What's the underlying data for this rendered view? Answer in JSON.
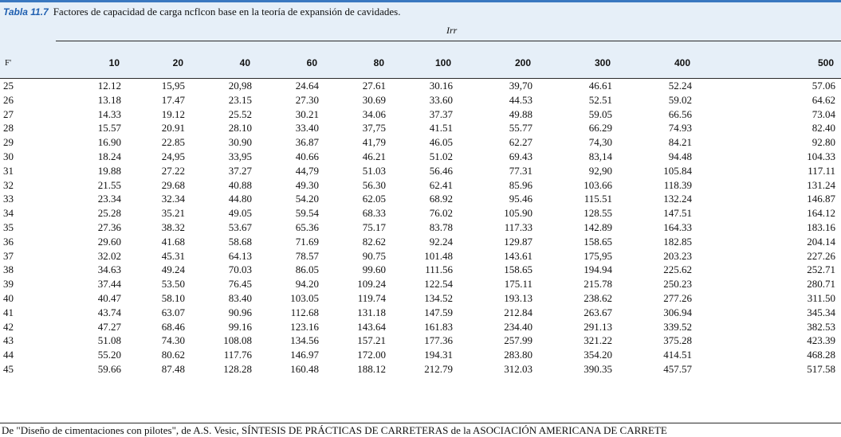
{
  "caption": {
    "label": "Tabla 11.7",
    "text": "Factores de capacidad de carga ncflcon base en la teoría de expansión de cavidades."
  },
  "table": {
    "group_header": "Irr",
    "row_header": "F'",
    "columns": [
      "10",
      "20",
      "40",
      "60",
      "80",
      "100",
      "200",
      "300",
      "400",
      "500"
    ],
    "rows": [
      {
        "phi": "25",
        "values": [
          "12.12",
          "15,95",
          "20,98",
          "24.64",
          "27.61",
          "30.16",
          "39,70",
          "46.61",
          "52.24",
          "57.06"
        ]
      },
      {
        "phi": "26",
        "values": [
          "13.18",
          "17.47",
          "23.15",
          "27.30",
          "30.69",
          "33.60",
          "44.53",
          "52.51",
          "59.02",
          "64.62"
        ]
      },
      {
        "phi": "27",
        "values": [
          "14.33",
          "19.12",
          "25.52",
          "30.21",
          "34.06",
          "37.37",
          "49.88",
          "59.05",
          "66.56",
          "73.04"
        ]
      },
      {
        "phi": "28",
        "values": [
          "15.57",
          "20.91",
          "28.10",
          "33.40",
          "37,75",
          "41.51",
          "55.77",
          "66.29",
          "74.93",
          "82.40"
        ]
      },
      {
        "phi": "29",
        "values": [
          "16.90",
          "22.85",
          "30.90",
          "36.87",
          "41,79",
          "46.05",
          "62.27",
          "74,30",
          "84.21",
          "92.80"
        ]
      },
      {
        "phi": "30",
        "values": [
          "18.24",
          "24,95",
          "33,95",
          "40.66",
          "46.21",
          "51.02",
          "69.43",
          "83,14",
          "94.48",
          "104.33"
        ]
      },
      {
        "phi": "31",
        "values": [
          "19.88",
          "27.22",
          "37.27",
          "44,79",
          "51.03",
          "56.46",
          "77.31",
          "92,90",
          "105.84",
          "117.11"
        ]
      },
      {
        "phi": "32",
        "values": [
          "21.55",
          "29.68",
          "40.88",
          "49.30",
          "56.30",
          "62.41",
          "85.96",
          "103.66",
          "118.39",
          "131.24"
        ]
      },
      {
        "phi": "33",
        "values": [
          "23.34",
          "32.34",
          "44.80",
          "54.20",
          "62.05",
          "68.92",
          "95.46",
          "115.51",
          "132.24",
          "146.87"
        ]
      },
      {
        "phi": "34",
        "values": [
          "25.28",
          "35.21",
          "49.05",
          "59.54",
          "68.33",
          "76.02",
          "105.90",
          "128.55",
          "147.51",
          "164.12"
        ]
      },
      {
        "phi": "35",
        "values": [
          "27.36",
          "38.32",
          "53.67",
          "65.36",
          "75.17",
          "83.78",
          "117.33",
          "142.89",
          "164.33",
          "183.16"
        ]
      },
      {
        "phi": "36",
        "values": [
          "29.60",
          "41.68",
          "58.68",
          "71.69",
          "82.62",
          "92.24",
          "129.87",
          "158.65",
          "182.85",
          "204.14"
        ]
      },
      {
        "phi": "37",
        "values": [
          "32.02",
          "45.31",
          "64.13",
          "78.57",
          "90.75",
          "101.48",
          "143.61",
          "175,95",
          "203.23",
          "227.26"
        ]
      },
      {
        "phi": "38",
        "values": [
          "34.63",
          "49.24",
          "70.03",
          "86.05",
          "99.60",
          "111.56",
          "158.65",
          "194.94",
          "225.62",
          "252.71"
        ]
      },
      {
        "phi": "39",
        "values": [
          "37.44",
          "53.50",
          "76.45",
          "94.20",
          "109.24",
          "122.54",
          "175.11",
          "215.78",
          "250.23",
          "280.71"
        ]
      },
      {
        "phi": "40",
        "values": [
          "40.47",
          "58.10",
          "83.40",
          "103.05",
          "119.74",
          "134.52",
          "193.13",
          "238.62",
          "277.26",
          "311.50"
        ]
      },
      {
        "phi": "41",
        "values": [
          "43.74",
          "63.07",
          "90.96",
          "112.68",
          "131.18",
          "147.59",
          "212.84",
          "263.67",
          "306.94",
          "345.34"
        ]
      },
      {
        "phi": "42",
        "values": [
          "47.27",
          "68.46",
          "99.16",
          "123.16",
          "143.64",
          "161.83",
          "234.40",
          "291.13",
          "339.52",
          "382.53"
        ]
      },
      {
        "phi": "43",
        "values": [
          "51.08",
          "74.30",
          "108.08",
          "134.56",
          "157.21",
          "177.36",
          "257.99",
          "321.22",
          "375.28",
          "423.39"
        ]
      },
      {
        "phi": "44",
        "values": [
          "55.20",
          "80.62",
          "117.76",
          "146.97",
          "172.00",
          "194.31",
          "283.80",
          "354.20",
          "414.51",
          "468.28"
        ]
      },
      {
        "phi": "45",
        "values": [
          "59.66",
          "87.48",
          "128.28",
          "160.48",
          "188.12",
          "212.79",
          "312.03",
          "390.35",
          "457.57",
          "517.58"
        ]
      }
    ]
  },
  "source": "De \"Diseño de cimentaciones con pilotes\", de A.S. Vesic, SÍNTESIS DE PRÁCTICAS DE CARRETERAS de la ASOCIACIÓN AMERICANA DE CARRETE"
}
